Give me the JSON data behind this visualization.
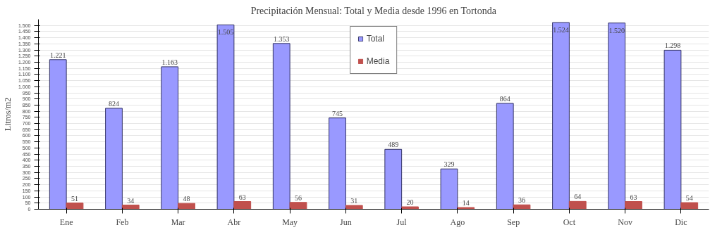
{
  "chart_data": {
    "type": "bar",
    "title": "Precipitación Mensual: Total y Media desde 1996 en Tortonda",
    "ylabel": "Litros/m2",
    "categories": [
      "Ene",
      "Feb",
      "Mar",
      "Abr",
      "May",
      "Jun",
      "Jul",
      "Ago",
      "Sep",
      "Oct",
      "Nov",
      "Dic"
    ],
    "series": [
      {
        "name": "Total",
        "color": "#9999ff",
        "values": [
          1221,
          824,
          1163,
          1505,
          1353,
          745,
          489,
          329,
          864,
          1524,
          1520,
          1298
        ],
        "value_labels": [
          "1.221",
          "824",
          "1.163",
          "1.505",
          "1.353",
          "745",
          "489",
          "329",
          "864",
          "1.524",
          "1.520",
          "1.298"
        ]
      },
      {
        "name": "Media",
        "color": "#c0504d",
        "values": [
          51,
          34,
          48,
          63,
          56,
          31,
          20,
          14,
          36,
          64,
          63,
          54
        ],
        "value_labels": [
          "51",
          "34",
          "48",
          "63",
          "56",
          "31",
          "20",
          "14",
          "36",
          "64",
          "63",
          "54"
        ]
      }
    ],
    "ylim": [
      0,
      1550
    ],
    "yticks": [
      0,
      50,
      100,
      150,
      200,
      250,
      300,
      350,
      400,
      450,
      500,
      550,
      600,
      650,
      700,
      750,
      800,
      850,
      900,
      950,
      {
        "value": 1000,
        "label": "1.000"
      },
      {
        "value": 1050,
        "label": "1.050"
      },
      {
        "value": 1100,
        "label": "1.100"
      },
      {
        "value": 1150,
        "label": "1.150"
      },
      {
        "value": 1200,
        "label": "1.200"
      },
      {
        "value": 1250,
        "label": "1.250"
      },
      {
        "value": 1300,
        "label": "1.300"
      },
      {
        "value": 1350,
        "label": "1.350"
      },
      {
        "value": 1400,
        "label": "1.400"
      },
      {
        "value": 1450,
        "label": "1.450"
      },
      {
        "value": 1500,
        "label": "1.500"
      }
    ],
    "grid": "y",
    "legend": "top"
  }
}
